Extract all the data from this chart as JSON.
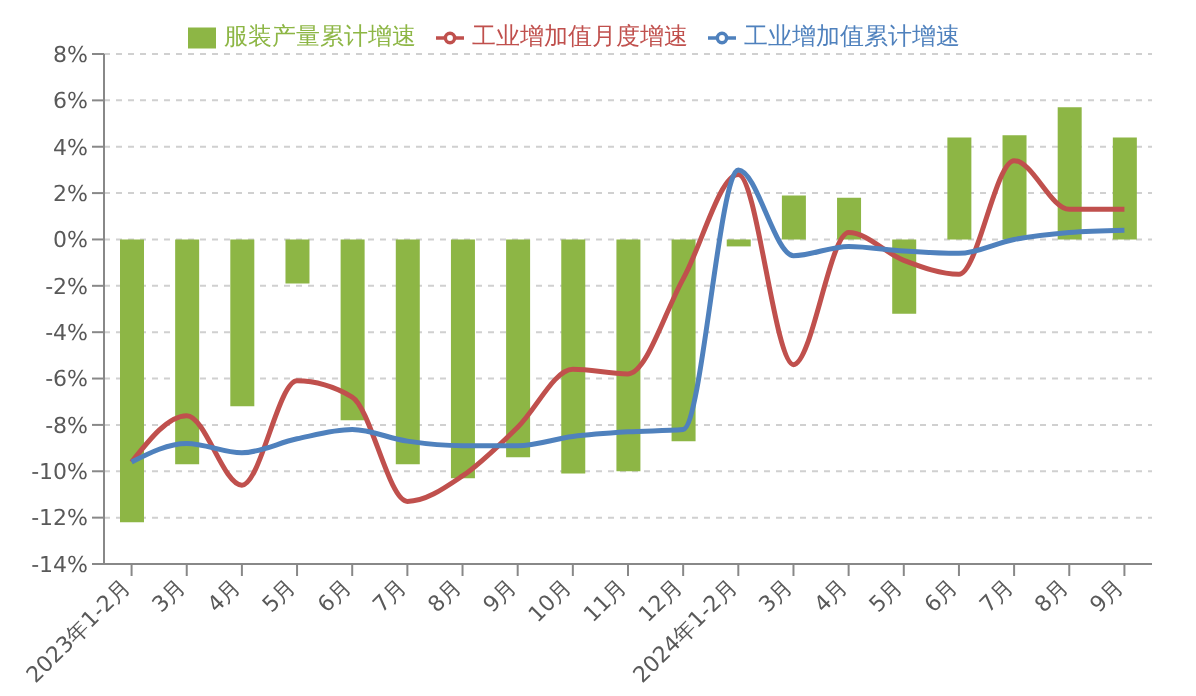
{
  "chart_data": {
    "type": "bar",
    "categories": [
      "2023年1-2月",
      "3月",
      "4月",
      "5月",
      "6月",
      "7月",
      "8月",
      "9月",
      "10月",
      "11月",
      "12月",
      "2024年1-2月",
      "3月",
      "4月",
      "5月",
      "6月",
      "7月",
      "8月",
      "9月"
    ],
    "series": [
      {
        "name": "服装产量累计增速",
        "color": "#8db645",
        "values": [
          -12.2,
          -9.7,
          -7.2,
          -1.9,
          -7.8,
          -9.7,
          -10.3,
          -9.4,
          -10.1,
          -10.0,
          -8.7,
          -0.3,
          1.9,
          1.8,
          -3.2,
          4.4,
          4.5,
          5.7,
          4.4
        ]
      },
      {
        "name": "工业增加值月度增速",
        "type": "line",
        "color": "#c0504d",
        "values": [
          -9.6,
          -7.6,
          -10.6,
          -6.1,
          -6.8,
          -11.3,
          -10.2,
          -8.1,
          -5.6,
          -5.8,
          -1.7,
          2.8,
          -5.4,
          0.3,
          -0.9,
          -1.5,
          3.4,
          1.3,
          1.3
        ]
      },
      {
        "name": "工业增加值累计增速",
        "type": "line",
        "color": "#4f81bd",
        "values": [
          -9.6,
          -8.8,
          -9.2,
          -8.6,
          -8.2,
          -8.7,
          -8.9,
          -8.9,
          -8.5,
          -8.3,
          -8.2,
          3.0,
          -0.7,
          -0.3,
          -0.5,
          -0.6,
          0.0,
          0.3,
          0.4
        ]
      }
    ],
    "ylim": [
      -14,
      8
    ],
    "yticks": [
      {
        "value": -14,
        "label": "-14%"
      },
      {
        "value": -12,
        "label": "-12%"
      },
      {
        "value": -10,
        "label": "-10%"
      },
      {
        "value": -8,
        "label": "-8%"
      },
      {
        "value": -6,
        "label": "-6%"
      },
      {
        "value": -4,
        "label": "-4%"
      },
      {
        "value": -2,
        "label": "-2%"
      },
      {
        "value": 0,
        "label": "0%"
      },
      {
        "value": 2,
        "label": "2%"
      },
      {
        "value": 4,
        "label": "4%"
      },
      {
        "value": 6,
        "label": "6%"
      },
      {
        "value": 8,
        "label": "8%"
      }
    ],
    "grid": "y",
    "legend": "top",
    "marker": "none",
    "line_style": "solid"
  }
}
